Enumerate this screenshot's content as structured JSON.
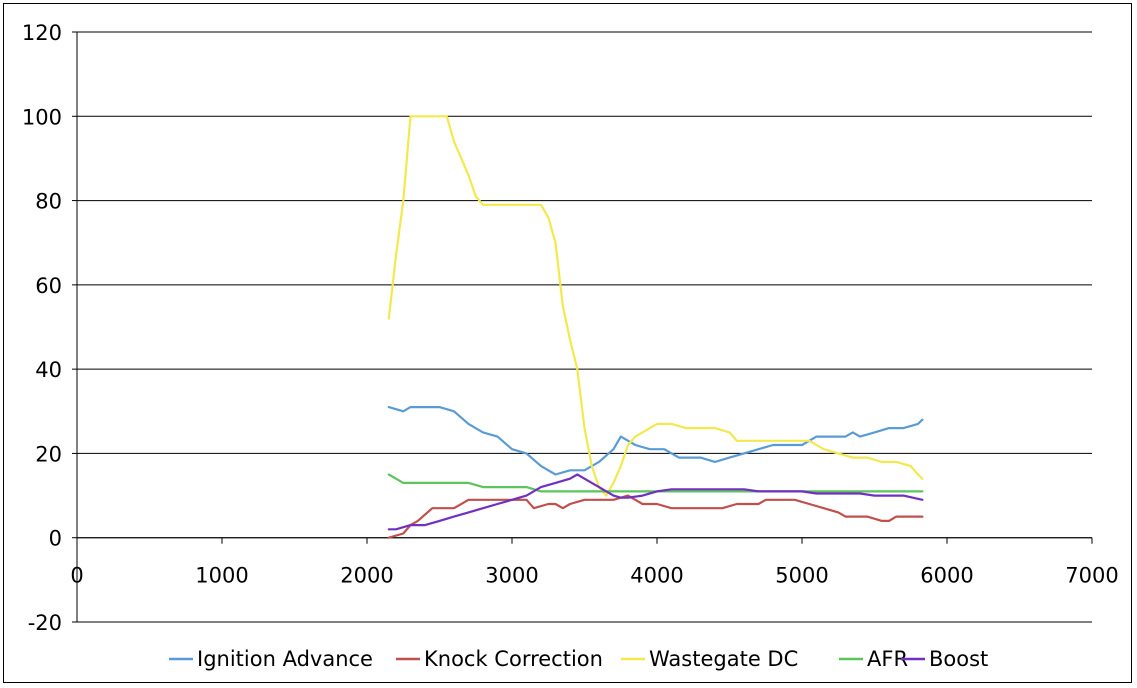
{
  "chart_data": {
    "type": "line",
    "title": "",
    "xlabel": "",
    "ylabel": "",
    "xlim": [
      0,
      7000
    ],
    "ylim": [
      -20,
      120
    ],
    "x_ticks": [
      0,
      1000,
      2000,
      3000,
      4000,
      5000,
      6000,
      7000
    ],
    "y_ticks": [
      -20,
      0,
      20,
      40,
      60,
      80,
      100,
      120
    ],
    "x_tick_labels": [
      "0",
      "1000",
      "2000",
      "3000",
      "4000",
      "5000",
      "6000",
      "7000"
    ],
    "y_tick_labels": [
      "-20",
      "0",
      "20",
      "40",
      "60",
      "80",
      "100",
      "120"
    ],
    "grid": "horizontal",
    "legend_position": "bottom",
    "series": [
      {
        "name": "Ignition Advance",
        "color": "#5b9bd5",
        "points": [
          [
            2150,
            31
          ],
          [
            2250,
            30
          ],
          [
            2300,
            31
          ],
          [
            2400,
            31
          ],
          [
            2500,
            31
          ],
          [
            2600,
            30
          ],
          [
            2700,
            27
          ],
          [
            2800,
            25
          ],
          [
            2900,
            24
          ],
          [
            3000,
            21
          ],
          [
            3100,
            20
          ],
          [
            3200,
            17
          ],
          [
            3300,
            15
          ],
          [
            3400,
            16
          ],
          [
            3500,
            16
          ],
          [
            3600,
            18
          ],
          [
            3700,
            21
          ],
          [
            3750,
            24
          ],
          [
            3850,
            22
          ],
          [
            3950,
            21
          ],
          [
            4050,
            21
          ],
          [
            4150,
            19
          ],
          [
            4300,
            19
          ],
          [
            4400,
            18
          ],
          [
            4500,
            19
          ],
          [
            4600,
            20
          ],
          [
            4700,
            21
          ],
          [
            4800,
            22
          ],
          [
            4900,
            22
          ],
          [
            5000,
            22
          ],
          [
            5100,
            24
          ],
          [
            5200,
            24
          ],
          [
            5300,
            24
          ],
          [
            5350,
            25
          ],
          [
            5400,
            24
          ],
          [
            5500,
            25
          ],
          [
            5600,
            26
          ],
          [
            5700,
            26
          ],
          [
            5800,
            27
          ],
          [
            5830,
            28
          ]
        ]
      },
      {
        "name": "Knock Correction",
        "color": "#c0504d",
        "points": [
          [
            2150,
            0
          ],
          [
            2250,
            1
          ],
          [
            2300,
            3
          ],
          [
            2350,
            4
          ],
          [
            2450,
            7
          ],
          [
            2600,
            7
          ],
          [
            2700,
            9
          ],
          [
            2800,
            9
          ],
          [
            3000,
            9
          ],
          [
            3100,
            9
          ],
          [
            3150,
            7
          ],
          [
            3250,
            8
          ],
          [
            3300,
            8
          ],
          [
            3350,
            7
          ],
          [
            3400,
            8
          ],
          [
            3500,
            9
          ],
          [
            3700,
            9
          ],
          [
            3800,
            10
          ],
          [
            3900,
            8
          ],
          [
            4000,
            8
          ],
          [
            4100,
            7
          ],
          [
            4200,
            7
          ],
          [
            4350,
            7
          ],
          [
            4450,
            7
          ],
          [
            4550,
            8
          ],
          [
            4700,
            8
          ],
          [
            4750,
            9
          ],
          [
            4850,
            9
          ],
          [
            4950,
            9
          ],
          [
            5050,
            8
          ],
          [
            5150,
            7
          ],
          [
            5250,
            6
          ],
          [
            5300,
            5
          ],
          [
            5450,
            5
          ],
          [
            5550,
            4
          ],
          [
            5600,
            4
          ],
          [
            5650,
            5
          ],
          [
            5830,
            5
          ]
        ]
      },
      {
        "name": "Wastegate DC",
        "color": "#f2e94e",
        "points": [
          [
            2150,
            52
          ],
          [
            2200,
            67
          ],
          [
            2250,
            80
          ],
          [
            2300,
            100
          ],
          [
            2350,
            100
          ],
          [
            2450,
            100
          ],
          [
            2550,
            100
          ],
          [
            2600,
            94
          ],
          [
            2650,
            90
          ],
          [
            2700,
            86
          ],
          [
            2750,
            81
          ],
          [
            2800,
            79
          ],
          [
            2900,
            79
          ],
          [
            3000,
            79
          ],
          [
            3100,
            79
          ],
          [
            3200,
            79
          ],
          [
            3250,
            76
          ],
          [
            3300,
            70
          ],
          [
            3350,
            55
          ],
          [
            3400,
            47
          ],
          [
            3450,
            40
          ],
          [
            3500,
            26
          ],
          [
            3550,
            17
          ],
          [
            3600,
            12
          ],
          [
            3650,
            10
          ],
          [
            3700,
            13
          ],
          [
            3750,
            17
          ],
          [
            3800,
            22
          ],
          [
            3850,
            24
          ],
          [
            3900,
            25
          ],
          [
            3950,
            26
          ],
          [
            4000,
            27
          ],
          [
            4100,
            27
          ],
          [
            4200,
            26
          ],
          [
            4300,
            26
          ],
          [
            4400,
            26
          ],
          [
            4500,
            25
          ],
          [
            4550,
            23
          ],
          [
            4650,
            23
          ],
          [
            4800,
            23
          ],
          [
            4950,
            23
          ],
          [
            5050,
            23
          ],
          [
            5150,
            21
          ],
          [
            5250,
            20
          ],
          [
            5350,
            19
          ],
          [
            5450,
            19
          ],
          [
            5550,
            18
          ],
          [
            5650,
            18
          ],
          [
            5750,
            17
          ],
          [
            5800,
            15
          ],
          [
            5830,
            14
          ]
        ]
      },
      {
        "name": "AFR",
        "color": "#5cc45c",
        "points": [
          [
            2150,
            15
          ],
          [
            2200,
            14
          ],
          [
            2250,
            13
          ],
          [
            2300,
            13
          ],
          [
            2400,
            13
          ],
          [
            2500,
            13
          ],
          [
            2600,
            13
          ],
          [
            2700,
            13
          ],
          [
            2800,
            12
          ],
          [
            2900,
            12
          ],
          [
            3000,
            12
          ],
          [
            3100,
            12
          ],
          [
            3200,
            11
          ],
          [
            3300,
            11
          ],
          [
            3400,
            11
          ],
          [
            3500,
            11
          ],
          [
            3600,
            11
          ],
          [
            3700,
            11
          ],
          [
            3900,
            11
          ],
          [
            4100,
            11
          ],
          [
            4500,
            11
          ],
          [
            5000,
            11
          ],
          [
            5500,
            11
          ],
          [
            5830,
            11
          ]
        ]
      },
      {
        "name": "Boost",
        "color": "#7030c0",
        "points": [
          [
            2150,
            2
          ],
          [
            2200,
            2
          ],
          [
            2300,
            3
          ],
          [
            2400,
            3
          ],
          [
            2500,
            4
          ],
          [
            2600,
            5
          ],
          [
            2700,
            6
          ],
          [
            2800,
            7
          ],
          [
            2900,
            8
          ],
          [
            3000,
            9
          ],
          [
            3100,
            10
          ],
          [
            3200,
            12
          ],
          [
            3300,
            13
          ],
          [
            3400,
            14
          ],
          [
            3450,
            15
          ],
          [
            3500,
            14
          ],
          [
            3550,
            13
          ],
          [
            3600,
            12
          ],
          [
            3650,
            11
          ],
          [
            3700,
            10
          ],
          [
            3750,
            9.5
          ],
          [
            3800,
            9.5
          ],
          [
            3900,
            10
          ],
          [
            4000,
            11
          ],
          [
            4100,
            11.5
          ],
          [
            4200,
            11.5
          ],
          [
            4300,
            11.5
          ],
          [
            4400,
            11.5
          ],
          [
            4500,
            11.5
          ],
          [
            4600,
            11.5
          ],
          [
            4700,
            11
          ],
          [
            4800,
            11
          ],
          [
            4900,
            11
          ],
          [
            5000,
            11
          ],
          [
            5100,
            10.5
          ],
          [
            5200,
            10.5
          ],
          [
            5300,
            10.5
          ],
          [
            5400,
            10.5
          ],
          [
            5500,
            10
          ],
          [
            5600,
            10
          ],
          [
            5700,
            10
          ],
          [
            5830,
            9
          ]
        ]
      }
    ]
  }
}
